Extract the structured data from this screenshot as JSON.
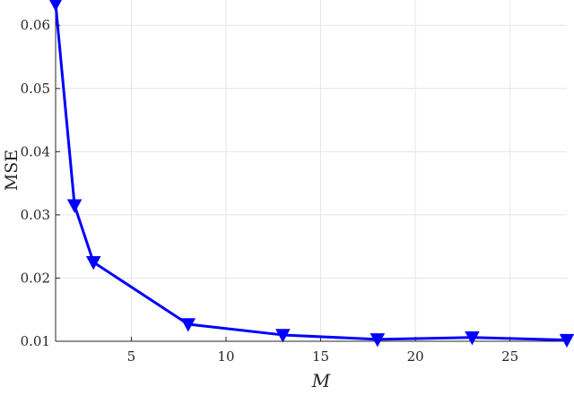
{
  "chart_data": {
    "type": "line",
    "title": "",
    "xlabel": "M",
    "ylabel": "MSE",
    "xlim": [
      1,
      28
    ],
    "ylim": [
      0.01,
      0.064
    ],
    "xticks": [
      5,
      10,
      15,
      20,
      25
    ],
    "yticks": [
      0.01,
      0.02,
      0.03,
      0.04,
      0.05,
      0.06
    ],
    "xtick_labels": [
      "5",
      "10",
      "15",
      "20",
      "25"
    ],
    "ytick_labels": [
      "0.01",
      "0.02",
      "0.03",
      "0.04",
      "0.05",
      "0.06"
    ],
    "grid": true,
    "series": [
      {
        "x": [
          1,
          2,
          3,
          8,
          13,
          18,
          23,
          28
        ],
        "y": [
          0.0634,
          0.0315,
          0.0225,
          0.0127,
          0.011,
          0.0103,
          0.0106,
          0.0102
        ],
        "color": "#0000ff",
        "marker": "triangle-down"
      }
    ]
  }
}
